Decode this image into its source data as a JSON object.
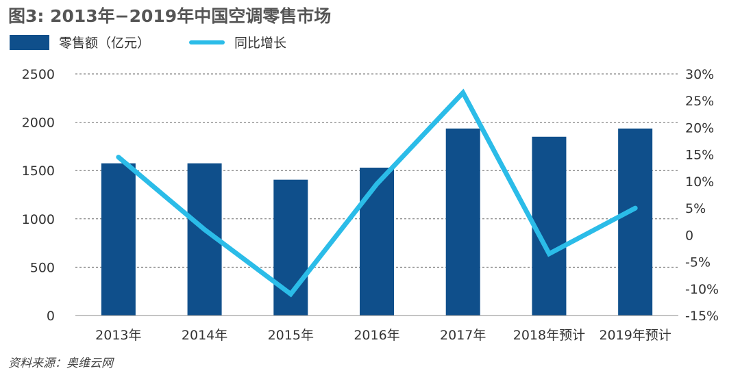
{
  "chart_data": {
    "type": "bar",
    "title": "图3: 2013年−2019年中国空调零售市场",
    "categories": [
      "2013年",
      "2014年",
      "2015年",
      "2016年",
      "2017年",
      "2018年预计",
      "2019年预计"
    ],
    "series": [
      {
        "name": "零售额（亿元）",
        "type": "bar",
        "axis": "left",
        "values": [
          1575,
          1575,
          1405,
          1530,
          1935,
          1850,
          1935
        ]
      },
      {
        "name": "同比增长",
        "type": "line",
        "axis": "right",
        "values": [
          14.5,
          1.0,
          -11.0,
          9.5,
          26.5,
          -3.5,
          5.0
        ]
      }
    ],
    "ylim": [
      0,
      2500
    ],
    "yticks": [
      0,
      500,
      1000,
      1500,
      2000,
      2500
    ],
    "y2lim": [
      -15,
      30
    ],
    "y2ticks": [
      "-15%",
      "-10%",
      "-5%",
      "0",
      "5%",
      "10%",
      "15%",
      "20%",
      "25%",
      "30%"
    ],
    "y2tick_values": [
      -15,
      -10,
      -5,
      0,
      5,
      10,
      15,
      20,
      25,
      30
    ],
    "grid": "horizontal dashed",
    "legend_position": "top-left",
    "colors": {
      "bar": "#0f4f8b",
      "line": "#2bbce8"
    },
    "source": "资料来源：奥维云网"
  }
}
